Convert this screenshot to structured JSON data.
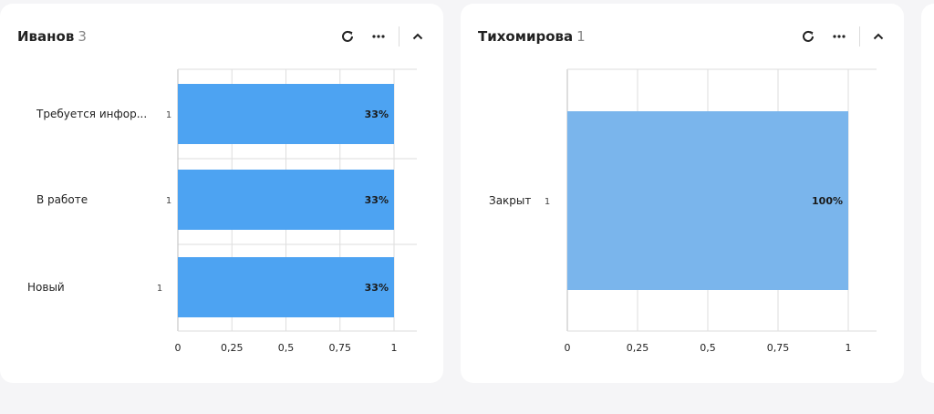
{
  "colors": {
    "bar_primary": "#4da3f2",
    "bar_secondary": "#7ab5ec",
    "grid": "#dedede",
    "axis": "#bdbdbd"
  },
  "cards": [
    {
      "title": "Иванов",
      "count": "3",
      "icons": [
        "refresh-icon",
        "more-icon",
        "chevron-up-icon"
      ]
    },
    {
      "title": "Тихомирова",
      "count": "1",
      "icons": [
        "refresh-icon",
        "more-icon",
        "chevron-up-icon"
      ]
    }
  ],
  "chart_data": [
    {
      "type": "bar",
      "orientation": "horizontal",
      "categories": [
        "Требуется инфор...",
        "В работе",
        "Новый"
      ],
      "counts": [
        "1",
        "1",
        "1"
      ],
      "values": [
        1,
        1,
        1
      ],
      "data_labels": [
        "33%",
        "33%",
        "33%"
      ],
      "xlim": [
        0,
        1
      ],
      "xticks": [
        "0",
        "0,25",
        "0,5",
        "0,75",
        "1"
      ],
      "grid": true
    },
    {
      "type": "bar",
      "orientation": "horizontal",
      "categories": [
        "Закрыт"
      ],
      "counts": [
        "1"
      ],
      "values": [
        1
      ],
      "data_labels": [
        "100%"
      ],
      "xlim": [
        0,
        1
      ],
      "xticks": [
        "0",
        "0,25",
        "0,5",
        "0,75",
        "1"
      ],
      "grid": true
    }
  ]
}
